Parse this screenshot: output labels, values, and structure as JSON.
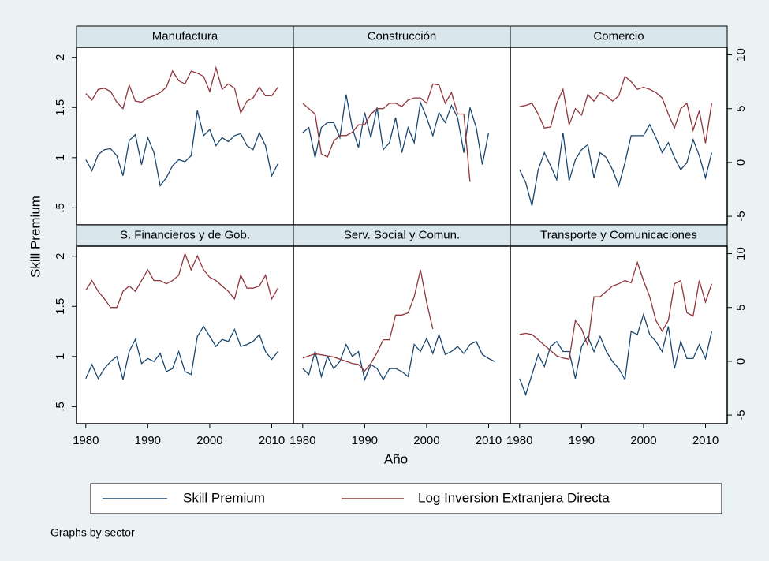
{
  "chart_data": {
    "type": "line",
    "xlabel": "Año",
    "ylabel": "Skill Premium",
    "note": "Graphs by sector",
    "x": [
      1980,
      1981,
      1982,
      1983,
      1984,
      1985,
      1986,
      1987,
      1988,
      1989,
      1990,
      1991,
      1992,
      1993,
      1994,
      1995,
      1996,
      1997,
      1998,
      1999,
      2000,
      2001,
      2002,
      2003,
      2004,
      2005,
      2006,
      2007,
      2008,
      2009,
      2010,
      2011
    ],
    "xlim": [
      1978.5,
      2013.5
    ],
    "xticks": [
      1980,
      1990,
      2000,
      2010
    ],
    "ylim": [
      0.33,
      2.1
    ],
    "yticks": [
      {
        "value": 0.5,
        "label": ".5"
      },
      1,
      1.5,
      2
    ],
    "y2lim": [
      -5.8,
      10.7
    ],
    "y2ticks": [
      -5,
      0,
      5,
      10
    ],
    "series": [
      {
        "name": "Skill Premium",
        "color": "#1a476f"
      },
      {
        "name": "Log Inversion Extranjera Directa",
        "color": "#90353b",
        "axis": "y2"
      }
    ],
    "panels": [
      {
        "title": "Manufactura",
        "values": [
          [
            0.98,
            0.87,
            1.03,
            1.08,
            1.09,
            1.02,
            0.82,
            1.17,
            1.23,
            0.93,
            1.2,
            1.05,
            0.72,
            0.8,
            0.92,
            0.98,
            0.96,
            1.02,
            1.47,
            1.22,
            1.28,
            1.12,
            1.2,
            1.16,
            1.22,
            1.24,
            1.12,
            1.08,
            1.25,
            1.12,
            0.82,
            0.94
          ],
          [
            6.4,
            5.8,
            6.8,
            6.9,
            6.6,
            5.6,
            5.0,
            7.2,
            5.7,
            5.6,
            6.0,
            6.2,
            6.5,
            7.0,
            8.5,
            7.6,
            7.3,
            8.5,
            8.3,
            8.0,
            6.6,
            8.8,
            6.8,
            7.3,
            6.9,
            4.6,
            5.7,
            6.0,
            7.0,
            6.2,
            6.2,
            7.0
          ]
        ]
      },
      {
        "title": "Construcción",
        "values": [
          [
            1.25,
            1.3,
            1.0,
            1.3,
            1.35,
            1.35,
            1.2,
            1.63,
            1.3,
            1.1,
            1.45,
            1.2,
            1.5,
            1.08,
            1.15,
            1.4,
            1.05,
            1.3,
            1.15,
            1.55,
            1.4,
            1.22,
            1.45,
            1.35,
            1.52,
            1.4,
            1.05,
            1.5,
            1.3,
            0.93,
            1.25,
            null
          ],
          [
            5.5,
            5.0,
            4.5,
            0.8,
            0.5,
            2.0,
            2.5,
            2.5,
            2.8,
            3.5,
            3.5,
            4.5,
            5.0,
            5.0,
            5.5,
            5.5,
            5.2,
            5.8,
            6.0,
            6.0,
            5.5,
            7.3,
            7.2,
            5.5,
            6.5,
            4.5,
            4.5,
            -1.8,
            null,
            null,
            null,
            null
          ]
        ]
      },
      {
        "title": "Comercio",
        "values": [
          [
            0.88,
            0.75,
            0.52,
            0.88,
            1.05,
            0.92,
            0.78,
            1.25,
            0.77,
            0.98,
            1.08,
            1.13,
            0.8,
            1.05,
            1.0,
            0.88,
            0.72,
            0.95,
            1.22,
            1.22,
            1.22,
            1.33,
            1.2,
            1.05,
            1.15,
            1.0,
            0.88,
            0.95,
            1.18,
            1.02,
            0.8,
            1.05
          ],
          [
            5.2,
            5.3,
            5.5,
            4.5,
            3.2,
            3.3,
            5.5,
            6.8,
            3.5,
            5.0,
            4.4,
            6.3,
            5.7,
            6.5,
            6.2,
            5.7,
            6.2,
            8.0,
            7.5,
            6.8,
            7.0,
            6.8,
            6.5,
            6.0,
            4.5,
            3.2,
            5.0,
            5.5,
            3.0,
            4.8,
            1.8,
            5.5
          ]
        ]
      },
      {
        "title": "S. Financieros y de Gob.",
        "values": [
          [
            0.78,
            0.92,
            0.78,
            0.88,
            0.95,
            1.0,
            0.77,
            1.05,
            1.17,
            0.93,
            0.98,
            0.95,
            1.03,
            0.85,
            0.88,
            1.05,
            0.85,
            0.82,
            1.2,
            1.3,
            1.2,
            1.1,
            1.17,
            1.15,
            1.27,
            1.1,
            1.12,
            1.15,
            1.22,
            1.05,
            0.97,
            1.05
          ],
          [
            6.6,
            7.5,
            6.5,
            5.8,
            5.0,
            5.0,
            6.5,
            7.0,
            6.5,
            7.5,
            8.5,
            7.5,
            7.5,
            7.2,
            7.5,
            8.0,
            10.0,
            8.5,
            9.8,
            8.5,
            7.8,
            7.5,
            7.0,
            6.5,
            5.8,
            8.0,
            6.8,
            6.8,
            7.0,
            8.0,
            5.8,
            6.8
          ]
        ]
      },
      {
        "title": "Serv. Social y Comun.",
        "values": [
          [
            0.88,
            0.82,
            1.05,
            0.8,
            1.0,
            0.88,
            0.95,
            1.12,
            1.0,
            1.05,
            0.77,
            0.92,
            0.88,
            0.77,
            0.88,
            0.88,
            0.85,
            0.8,
            1.12,
            1.05,
            1.18,
            1.03,
            1.22,
            1.02,
            1.05,
            1.1,
            1.03,
            1.12,
            1.15,
            1.02,
            0.98,
            0.95
          ],
          [
            0.3,
            0.5,
            0.7,
            0.6,
            0.5,
            0.4,
            0.2,
            0.0,
            -0.2,
            -0.3,
            -0.9,
            -0.2,
            0.8,
            2.0,
            2.0,
            4.3,
            4.3,
            4.5,
            6.0,
            8.5,
            5.5,
            3.0,
            null,
            null,
            null,
            null,
            null,
            null,
            null,
            null,
            null,
            null
          ]
        ]
      },
      {
        "title": "Transporte y Comunicaciones",
        "values": [
          [
            0.78,
            0.62,
            0.82,
            1.02,
            0.9,
            1.1,
            1.15,
            1.05,
            1.05,
            0.78,
            1.1,
            1.2,
            1.05,
            1.2,
            1.05,
            0.95,
            0.88,
            0.77,
            1.25,
            1.22,
            1.42,
            1.22,
            1.15,
            1.05,
            1.3,
            0.88,
            1.15,
            0.98,
            0.98,
            1.12,
            0.98,
            1.25
          ],
          [
            2.5,
            2.6,
            2.5,
            2.0,
            1.5,
            1.0,
            0.5,
            0.3,
            0.2,
            3.8,
            3.0,
            1.5,
            6.0,
            6.0,
            6.5,
            7.0,
            7.2,
            7.5,
            7.3,
            9.2,
            7.5,
            6.0,
            3.8,
            2.8,
            3.8,
            7.2,
            7.5,
            4.5,
            4.2,
            7.5,
            5.5,
            7.2
          ]
        ]
      }
    ]
  }
}
